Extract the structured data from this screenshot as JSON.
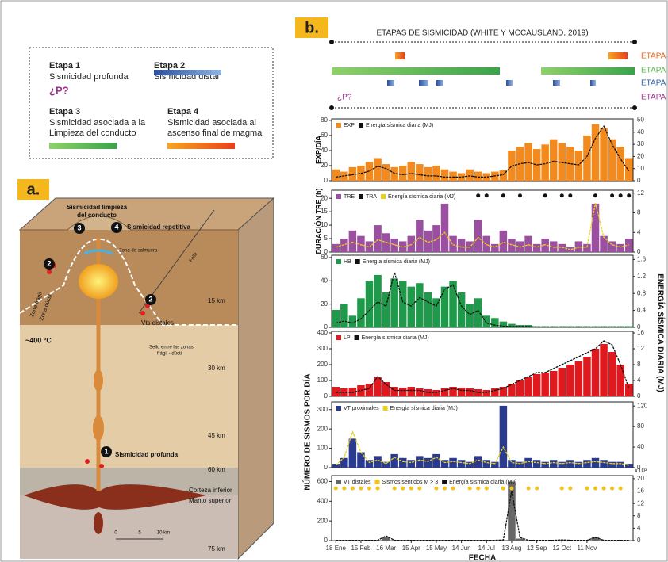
{
  "stage_legend": {
    "items": [
      {
        "title": "Etapa 1",
        "lines": [
          "Sismicidad profunda"
        ]
      },
      {
        "title": "Etapa 2",
        "lines": [
          "Sismicidad distal"
        ]
      },
      {
        "title": "Etapa 3",
        "lines": [
          "Sismicidad asociada a la",
          "Limpieza del conducto"
        ]
      },
      {
        "title": "Etapa 4",
        "lines": [
          "Sismicidad asociada al",
          "ascenso final de magma"
        ]
      }
    ],
    "p_symbol": "¿P?"
  },
  "diagram": {
    "label": "a.",
    "labels": [
      "Sismicidad limpieza",
      "del conducto",
      "Sismicidad repetitiva",
      "Zona de salmuera",
      "Falla",
      "Zona frágil",
      "Zona dúctil",
      "15 km",
      "Vts distales",
      "~400 °C",
      "Sello entre las zonas",
      "frágil - dúctil",
      "30 km",
      "45 km",
      "60 km",
      "Sismicidad profunda",
      "Corteza inferior",
      "Manto superior",
      "75 km",
      "0",
      "5",
      "10 km"
    ],
    "markers": [
      "1",
      "2",
      "2",
      "3",
      "4"
    ]
  },
  "figure_b": {
    "label": "b.",
    "title": "ETAPAS DE SISMICIDAD (WHITE Y MCCAUSLAND, 2019)",
    "stage_rows": [
      "ETAPA 4",
      "ETAPA 3",
      "ETAPA 2",
      "ETAPA 1"
    ],
    "ylabel": "NÚMERO DE SISMOS POR DÍA",
    "y2label": "ENERGÍA SÍSMICA DIARIA (MJ)"
  },
  "chart_data": [
    {
      "type": "bar",
      "ylabel": "EXP/DÍA",
      "ylim": [
        0,
        82
      ],
      "yticks": [
        0,
        20,
        40,
        60,
        80
      ],
      "y2lim": [
        0,
        51
      ],
      "y2ticks": [
        0,
        10,
        20,
        30,
        40,
        50
      ],
      "series": [
        {
          "name": "EXP",
          "type": "bar",
          "color": "#f28a1e",
          "values": [
            15,
            12,
            18,
            20,
            25,
            30,
            22,
            18,
            20,
            25,
            22,
            18,
            20,
            15,
            12,
            10,
            15,
            12,
            10,
            12,
            14,
            40,
            45,
            50,
            42,
            48,
            55,
            50,
            45,
            40,
            60,
            75,
            70,
            55,
            45,
            30
          ]
        },
        {
          "name": "Energía sísmica diaria (MJ)",
          "type": "line",
          "axis": "y2",
          "color": "#111111",
          "values": [
            3,
            4,
            5,
            6,
            8,
            12,
            10,
            6,
            5,
            6,
            5,
            4,
            4,
            3,
            3,
            3,
            4,
            3,
            3,
            4,
            5,
            12,
            14,
            15,
            13,
            14,
            16,
            15,
            14,
            13,
            20,
            35,
            45,
            30,
            18,
            8
          ]
        }
      ]
    },
    {
      "type": "bar",
      "ylabel": "DURACIÓN TRE (h)",
      "ylim": [
        0,
        23
      ],
      "yticks": [
        0,
        5,
        10,
        15,
        20
      ],
      "y2lim": [
        0,
        12.6
      ],
      "y2ticks": [
        0,
        4,
        8,
        12
      ],
      "series": [
        {
          "name": "TRE",
          "type": "bar",
          "color": "#9b4fa0",
          "values": [
            3,
            5,
            8,
            6,
            4,
            10,
            7,
            5,
            4,
            6,
            12,
            8,
            10,
            18,
            6,
            5,
            4,
            12,
            6,
            3,
            8,
            5,
            4,
            6,
            3,
            5,
            4,
            3,
            2,
            4,
            3,
            18,
            6,
            4,
            3,
            5
          ]
        },
        {
          "name": "TRA",
          "type": "scatter",
          "color": "#111111",
          "values": [
            null,
            null,
            null,
            null,
            null,
            null,
            null,
            null,
            null,
            null,
            null,
            null,
            null,
            null,
            null,
            null,
            null,
            21,
            21,
            null,
            21,
            null,
            21,
            null,
            null,
            21,
            null,
            21,
            21,
            null,
            null,
            21,
            null,
            21,
            21,
            21
          ]
        },
        {
          "name": "Energía sísmica diaria (MJ)",
          "type": "line",
          "axis": "y2",
          "color": "#e8d21a",
          "values": [
            1,
            1.5,
            2,
            1.5,
            1,
            2.5,
            2,
            1.5,
            1,
            1.5,
            3,
            2,
            2.5,
            4,
            1.5,
            1,
            1,
            3,
            1.5,
            1,
            2,
            1.5,
            1,
            1.5,
            1,
            1.5,
            1,
            1,
            0.5,
            1,
            1,
            10,
            3,
            1.5,
            1,
            1.5
          ]
        }
      ]
    },
    {
      "type": "bar",
      "ylim": [
        0,
        62
      ],
      "yticks": [
        0,
        20,
        40,
        60
      ],
      "y2lim": [
        0,
        1.7
      ],
      "y2ticks": [
        0,
        0.4,
        0.8,
        1.2,
        1.6
      ],
      "series": [
        {
          "name": "HB",
          "type": "bar",
          "color": "#1f9a4a",
          "values": [
            15,
            20,
            10,
            25,
            40,
            45,
            30,
            42,
            40,
            35,
            38,
            30,
            25,
            35,
            40,
            30,
            20,
            25,
            10,
            8,
            5,
            3,
            2,
            2,
            1,
            1,
            1,
            1,
            1,
            1,
            1,
            1,
            1,
            1,
            1,
            1
          ]
        },
        {
          "name": "Energía sísmica diaria (MJ)",
          "type": "line",
          "axis": "y2",
          "color": "#111111",
          "values": [
            0.1,
            0.15,
            0.1,
            0.2,
            0.4,
            0.6,
            0.5,
            1.3,
            0.6,
            0.5,
            0.7,
            0.6,
            0.5,
            0.9,
            1.0,
            0.5,
            0.3,
            0.4,
            0.1,
            0.05,
            0.03,
            0.02,
            0.02,
            0.02,
            0.01,
            0.01,
            0.01,
            0.01,
            0.01,
            0.01,
            0.01,
            0.01,
            0.01,
            0.01,
            0.01,
            0.01
          ]
        }
      ]
    },
    {
      "type": "bar",
      "ylim": [
        0,
        410
      ],
      "yticks": [
        0,
        100,
        200,
        300,
        400
      ],
      "y2lim": [
        0,
        16.4
      ],
      "y2ticks": [
        0,
        4,
        8,
        12,
        16
      ],
      "series": [
        {
          "name": "LP",
          "type": "bar",
          "color": "#e0191f",
          "values": [
            60,
            50,
            55,
            70,
            80,
            120,
            90,
            60,
            55,
            60,
            50,
            45,
            40,
            50,
            60,
            55,
            50,
            45,
            40,
            50,
            60,
            80,
            100,
            120,
            140,
            150,
            160,
            180,
            200,
            220,
            250,
            300,
            330,
            280,
            200,
            80
          ]
        },
        {
          "name": "Energía sísmica diaria (MJ)",
          "type": "line",
          "axis": "y2",
          "color": "#111111",
          "values": [
            1,
            1,
            1,
            1.5,
            2,
            5,
            3,
            1.5,
            1.5,
            1.5,
            1.5,
            1,
            1,
            1.5,
            2,
            1.5,
            1.5,
            1,
            1,
            1.5,
            2,
            3,
            4,
            5,
            6,
            6,
            7,
            8,
            9,
            10,
            11,
            12,
            14,
            13,
            8,
            2
          ]
        }
      ]
    },
    {
      "type": "bar",
      "ylim": [
        0,
        340
      ],
      "yticks": [
        0,
        100,
        200,
        300
      ],
      "y2lim": [
        0,
        128
      ],
      "y2ticks": [
        0,
        40,
        80,
        120
      ],
      "series": [
        {
          "name": "VT proximales",
          "type": "bar",
          "color": "#2a3a8f",
          "values": [
            20,
            50,
            150,
            80,
            40,
            60,
            30,
            70,
            50,
            40,
            60,
            50,
            70,
            40,
            50,
            40,
            30,
            60,
            40,
            30,
            320,
            40,
            30,
            50,
            40,
            30,
            40,
            30,
            40,
            30,
            40,
            50,
            40,
            30,
            30,
            20
          ]
        },
        {
          "name": "Energía sísmica diaria (MJ)",
          "type": "line",
          "axis": "y2",
          "color": "#e8d21a",
          "values": [
            5,
            20,
            70,
            30,
            10,
            15,
            8,
            20,
            12,
            10,
            15,
            12,
            20,
            10,
            12,
            10,
            8,
            15,
            10,
            8,
            40,
            10,
            8,
            12,
            10,
            8,
            10,
            8,
            10,
            8,
            10,
            12,
            10,
            8,
            8,
            5
          ]
        }
      ]
    },
    {
      "type": "bar",
      "ylim": [
        0,
        660
      ],
      "yticks": [
        0,
        200,
        400,
        600
      ],
      "y2lim": [
        0,
        21
      ],
      "y2ticks": [
        0,
        4,
        8,
        12,
        16,
        20
      ],
      "y2_unit": "x10³",
      "xlabel": "FECHA",
      "categories": [
        "18 Ene",
        null,
        null,
        "15 Feb",
        null,
        null,
        "16 Mar",
        null,
        null,
        "15 Apr",
        null,
        null,
        "15 May",
        null,
        null,
        "14 Jun",
        null,
        null,
        "14 Jul",
        null,
        null,
        "13 Aug",
        null,
        null,
        "12 Sep",
        null,
        null,
        "12 Oct",
        null,
        null,
        "11 Nov",
        null,
        null,
        null,
        null,
        null
      ],
      "series": [
        {
          "name": "VT distales",
          "type": "bar",
          "color": "#666666",
          "values": [
            5,
            5,
            5,
            5,
            5,
            5,
            40,
            5,
            5,
            5,
            5,
            5,
            5,
            5,
            5,
            5,
            5,
            5,
            5,
            5,
            5,
            600,
            20,
            5,
            5,
            5,
            5,
            10,
            5,
            5,
            5,
            40,
            5,
            5,
            5,
            5
          ]
        },
        {
          "name": "Sismos sentidos M > 3",
          "type": "scatter",
          "color": "#f0c419",
          "values": [
            530,
            530,
            530,
            530,
            530,
            530,
            null,
            530,
            530,
            530,
            530,
            null,
            530,
            530,
            530,
            null,
            530,
            530,
            530,
            null,
            530,
            530,
            null,
            530,
            530,
            null,
            null,
            530,
            530,
            null,
            530,
            530,
            530,
            530,
            530,
            null
          ]
        },
        {
          "name": "Energía sísmica diaria (MJ)",
          "type": "line",
          "axis": "y2",
          "color": "#111111",
          "values": [
            0.1,
            0.1,
            0.1,
            0.1,
            0.1,
            0.1,
            1.5,
            0.1,
            0.1,
            0.1,
            0.1,
            0.1,
            0.1,
            0.1,
            0.1,
            0.1,
            0.1,
            0.1,
            0.1,
            0.1,
            0.2,
            16,
            1,
            0.1,
            0.1,
            0.1,
            0.1,
            0.2,
            0.1,
            0.1,
            0.1,
            1,
            0.1,
            0.1,
            0.1,
            0.1
          ]
        }
      ]
    }
  ]
}
